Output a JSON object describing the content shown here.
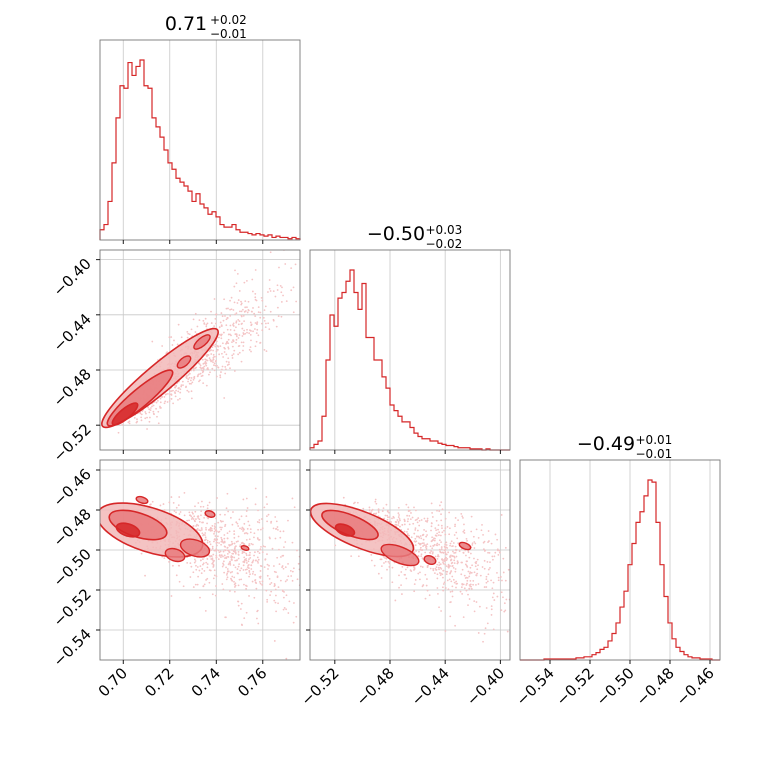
{
  "chart_data": {
    "type": "scatter",
    "style": {
      "line_color": "#d62728",
      "fill_colors": [
        "#f2b8b9",
        "#e77a7c",
        "#d62728"
      ],
      "point_color": "#f4c4c5",
      "grid": true
    },
    "parameters": [
      {
        "median": 0.71,
        "err_plus": 0.02,
        "err_minus": 0.01,
        "title_main": "0.71",
        "title_plus": "+0.02",
        "title_minus": "−0.01",
        "range": [
          0.69,
          0.776
        ],
        "ticks": [
          0.7,
          0.72,
          0.74,
          0.76
        ],
        "tick_labels": [
          "0.70",
          "0.72",
          "0.74",
          "0.76"
        ]
      },
      {
        "median": -0.5,
        "err_plus": 0.03,
        "err_minus": 0.02,
        "title_main": "−0.50",
        "title_plus": "+0.03",
        "title_minus": "−0.02",
        "range": [
          -0.538,
          -0.393
        ],
        "ticks": [
          -0.52,
          -0.48,
          -0.44,
          -0.4
        ],
        "tick_labels": [
          "−0.52",
          "−0.48",
          "−0.44",
          "−0.40"
        ]
      },
      {
        "median": -0.49,
        "err_plus": 0.01,
        "err_minus": 0.01,
        "title_main": "−0.49",
        "title_plus": "+0.01",
        "title_minus": "−0.01",
        "range": [
          -0.555,
          -0.455
        ],
        "ticks": [
          -0.54,
          -0.52,
          -0.5,
          -0.48,
          -0.46
        ],
        "tick_labels": [
          "−0.54",
          "−0.52",
          "−0.50",
          "−0.48",
          "−0.46"
        ]
      }
    ],
    "histograms": [
      {
        "param": 0,
        "bin_start": 0.69,
        "bin_width": 0.00172,
        "counts": [
          8,
          12,
          30,
          60,
          95,
          120,
          118,
          138,
          128,
          135,
          140,
          120,
          118,
          95,
          88,
          80,
          70,
          60,
          55,
          48,
          45,
          42,
          38,
          30,
          36,
          28,
          25,
          20,
          22,
          18,
          12,
          10,
          10,
          12,
          8,
          6,
          6,
          5,
          4,
          5,
          4,
          3,
          4,
          2,
          3,
          2,
          2,
          1,
          2,
          1
        ]
      },
      {
        "param": 1,
        "bin_start": -0.538,
        "bin_width": 0.0029,
        "counts": [
          2,
          5,
          8,
          30,
          80,
          120,
          110,
          135,
          140,
          150,
          160,
          140,
          125,
          148,
          100,
          100,
          80,
          80,
          65,
          55,
          40,
          35,
          30,
          25,
          25,
          20,
          15,
          12,
          10,
          10,
          8,
          8,
          6,
          5,
          4,
          4,
          3,
          2,
          2,
          2,
          1,
          1,
          1,
          0,
          1,
          0,
          0,
          0,
          0,
          0
        ]
      },
      {
        "param": 2,
        "bin_start": -0.555,
        "bin_width": 0.002,
        "counts": [
          0,
          0,
          0,
          0,
          0,
          0,
          1,
          1,
          1,
          1,
          1,
          1,
          1,
          1,
          2,
          2,
          3,
          3,
          5,
          7,
          10,
          12,
          18,
          25,
          35,
          50,
          65,
          90,
          110,
          130,
          140,
          155,
          170,
          168,
          130,
          90,
          60,
          35,
          20,
          12,
          8,
          5,
          3,
          2,
          2,
          1,
          1,
          1,
          0,
          0
        ]
      }
    ],
    "pairs": [
      {
        "x_param": 0,
        "y_param": 1,
        "correlation": 0.95
      },
      {
        "x_param": 0,
        "y_param": 2,
        "correlation": -0.35
      },
      {
        "x_param": 1,
        "y_param": 2,
        "correlation": -0.45
      }
    ]
  }
}
